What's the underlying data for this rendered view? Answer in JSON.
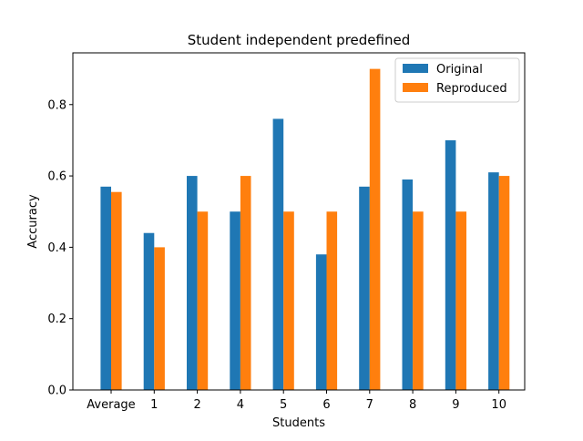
{
  "chart_data": {
    "type": "bar",
    "title": "Student independent predefined",
    "xlabel": "Students",
    "ylabel": "Accuracy",
    "categories": [
      "Average",
      "1",
      "2",
      "4",
      "5",
      "6",
      "7",
      "8",
      "9",
      "10"
    ],
    "series": [
      {
        "name": "Original",
        "color": "#1f77b4",
        "values": [
          0.57,
          0.44,
          0.6,
          0.5,
          0.76,
          0.38,
          0.57,
          0.59,
          0.7,
          0.61
        ]
      },
      {
        "name": "Reproduced",
        "color": "#ff7f0e",
        "values": [
          0.555,
          0.4,
          0.5,
          0.6,
          0.5,
          0.5,
          0.9,
          0.5,
          0.5,
          0.6
        ]
      }
    ],
    "ylim": [
      0,
      0.945
    ],
    "yticks": [
      0.0,
      0.2,
      0.4,
      0.6,
      0.8
    ],
    "ytick_labels": [
      "0.0",
      "0.2",
      "0.4",
      "0.6",
      "0.8"
    ],
    "grid": false,
    "legend_position": "top-right"
  }
}
